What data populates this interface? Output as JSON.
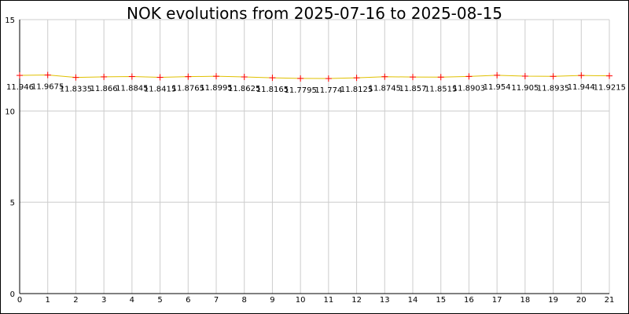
{
  "chart_data": {
    "type": "line",
    "title": "NOK evolutions from 2025-07-16 to 2025-08-15",
    "xlabel": "",
    "ylabel": "",
    "xlim": [
      0,
      21
    ],
    "ylim": [
      0,
      15
    ],
    "x_ticks": [
      "0",
      "1",
      "2",
      "3",
      "4",
      "5",
      "6",
      "7",
      "8",
      "9",
      "10",
      "11",
      "12",
      "13",
      "14",
      "15",
      "16",
      "17",
      "18",
      "19",
      "20",
      "21"
    ],
    "y_ticks": [
      "0",
      "5",
      "10",
      "15"
    ],
    "grid": true,
    "line_color": "#e0c000",
    "marker_color": "#ff0000",
    "x": [
      0,
      1,
      2,
      3,
      4,
      5,
      6,
      7,
      8,
      9,
      10,
      11,
      12,
      13,
      14,
      15,
      16,
      17,
      18,
      19,
      20,
      21
    ],
    "values": [
      11.946,
      11.9675,
      11.8335,
      11.866,
      11.8845,
      11.8415,
      11.8765,
      11.8995,
      11.8625,
      11.8165,
      11.7795,
      11.774,
      11.8125,
      11.8745,
      11.857,
      11.8515,
      11.8903,
      11.954,
      11.905,
      11.8935,
      11.944,
      11.9215
    ],
    "labels": [
      "11.946",
      "11.9675",
      "11.8335",
      "11.866",
      "11.8845",
      "11.8415",
      "11.8765",
      "11.8995",
      "11.8625",
      "11.8165",
      "11.7795",
      "11.774",
      "11.8125",
      "11.8745",
      "11.857",
      "11.8515",
      "11.8903",
      "11.954",
      "11.905",
      "11.8935",
      "11.944",
      "11.9215"
    ]
  }
}
